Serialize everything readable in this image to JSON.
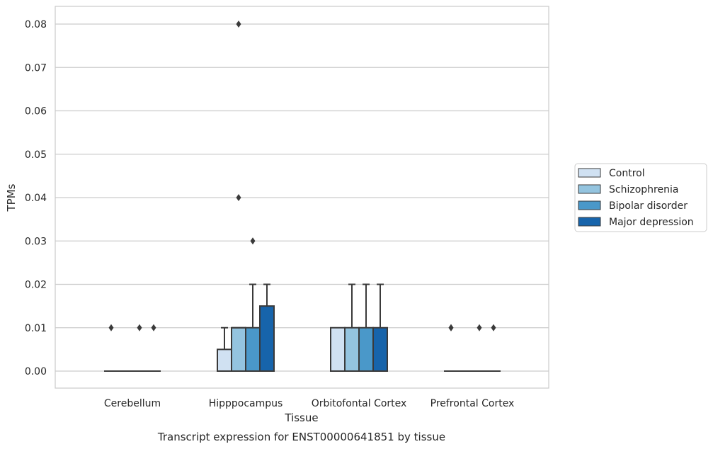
{
  "chart_data": {
    "type": "box",
    "title": "",
    "caption": "Transcript expression for ENST00000641851 by tissue",
    "xlabel": "Tissue",
    "ylabel": "TPMs",
    "ylim": [
      -0.004,
      0.084
    ],
    "yticks": [
      0.0,
      0.01,
      0.02,
      0.03,
      0.04,
      0.05,
      0.06,
      0.07,
      0.08
    ],
    "ytick_labels": [
      "0.00",
      "0.01",
      "0.02",
      "0.03",
      "0.04",
      "0.05",
      "0.06",
      "0.07",
      "0.08"
    ],
    "grid": true,
    "legend_position": "right",
    "categories": [
      "Cerebellum",
      "Hipppocampus",
      "Orbitofontal Cortex",
      "Prefrontal Cortex"
    ],
    "series": [
      {
        "name": "Control",
        "color": "#d0e1f2",
        "boxes": [
          {
            "q1": 0.0,
            "median": 0.0,
            "q3": 0.0,
            "whisker_low": 0.0,
            "whisker_high": 0.0,
            "outliers": [
              0.01
            ]
          },
          {
            "q1": 0.0,
            "median": 0.0,
            "q3": 0.005,
            "whisker_low": 0.0,
            "whisker_high": 0.01,
            "outliers": []
          },
          {
            "q1": 0.0,
            "median": 0.0,
            "q3": 0.01,
            "whisker_low": 0.0,
            "whisker_high": 0.01,
            "outliers": []
          },
          {
            "q1": 0.0,
            "median": 0.0,
            "q3": 0.0,
            "whisker_low": 0.0,
            "whisker_high": 0.0,
            "outliers": [
              0.01,
              0.01
            ]
          }
        ]
      },
      {
        "name": "Schizophrenia",
        "color": "#94c4df",
        "boxes": [
          {
            "q1": 0.0,
            "median": 0.0,
            "q3": 0.0,
            "whisker_low": 0.0,
            "whisker_high": 0.0,
            "outliers": []
          },
          {
            "q1": 0.0,
            "median": 0.01,
            "q3": 0.01,
            "whisker_low": 0.0,
            "whisker_high": 0.01,
            "outliers": [
              0.08,
              0.04
            ]
          },
          {
            "q1": 0.0,
            "median": 0.0,
            "q3": 0.01,
            "whisker_low": 0.0,
            "whisker_high": 0.02,
            "outliers": []
          },
          {
            "q1": 0.0,
            "median": 0.0,
            "q3": 0.0,
            "whisker_low": 0.0,
            "whisker_high": 0.0,
            "outliers": []
          }
        ]
      },
      {
        "name": "Bipolar disorder",
        "color": "#4a98c9",
        "boxes": [
          {
            "q1": 0.0,
            "median": 0.0,
            "q3": 0.0,
            "whisker_low": 0.0,
            "whisker_high": 0.0,
            "outliers": [
              0.01
            ]
          },
          {
            "q1": 0.0,
            "median": 0.0,
            "q3": 0.01,
            "whisker_low": 0.0,
            "whisker_high": 0.02,
            "outliers": [
              0.03
            ]
          },
          {
            "q1": 0.0,
            "median": 0.0,
            "q3": 0.01,
            "whisker_low": 0.0,
            "whisker_high": 0.02,
            "outliers": []
          },
          {
            "q1": 0.0,
            "median": 0.0,
            "q3": 0.0,
            "whisker_low": 0.0,
            "whisker_high": 0.0,
            "outliers": [
              0.01
            ]
          }
        ]
      },
      {
        "name": "Major depression",
        "color": "#1764ab",
        "boxes": [
          {
            "q1": 0.0,
            "median": 0.0,
            "q3": 0.0,
            "whisker_low": 0.0,
            "whisker_high": 0.0,
            "outliers": [
              0.01
            ]
          },
          {
            "q1": 0.0,
            "median": 0.0,
            "q3": 0.015,
            "whisker_low": 0.0,
            "whisker_high": 0.02,
            "outliers": []
          },
          {
            "q1": 0.0,
            "median": 0.0,
            "q3": 0.01,
            "whisker_low": 0.0,
            "whisker_high": 0.02,
            "outliers": []
          },
          {
            "q1": 0.0,
            "median": 0.0,
            "q3": 0.0,
            "whisker_low": 0.0,
            "whisker_high": 0.0,
            "outliers": [
              0.01
            ]
          }
        ]
      }
    ]
  }
}
